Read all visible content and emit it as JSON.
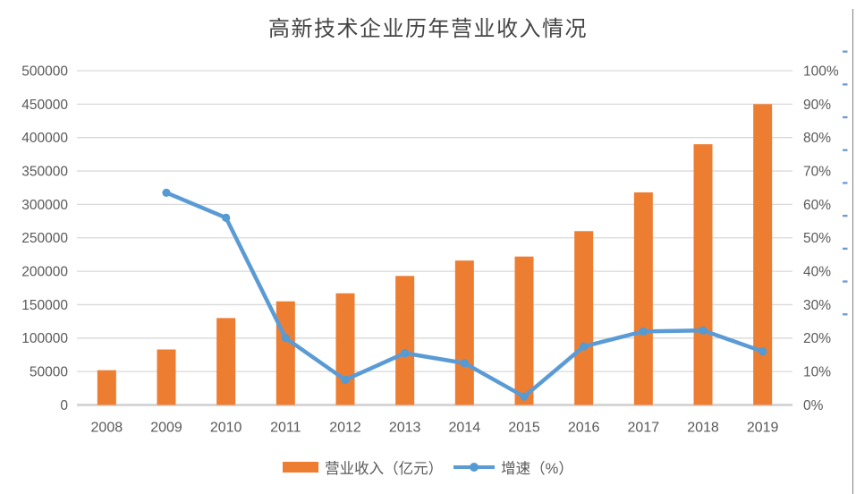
{
  "title": "高新技术企业历年营业收入情况",
  "colors": {
    "background": "#FFFFFF",
    "bar": "#ED7D31",
    "line": "#5B9BD5",
    "marker": "#549AD3",
    "grid": "#D9D9D9",
    "baseline": "#D6D6D6",
    "axis_text": "#595959",
    "title_text": "#454545",
    "edge_border": "#808080",
    "edge_dash": "#6C9BD2"
  },
  "chart_data": {
    "type": "bar+line",
    "title": "高新技术企业历年营业收入情况",
    "categories": [
      "2008",
      "2009",
      "2010",
      "2011",
      "2012",
      "2013",
      "2014",
      "2015",
      "2016",
      "2017",
      "2018",
      "2019"
    ],
    "series": [
      {
        "name": "营业收入（亿元）",
        "type": "bar",
        "axis": "left",
        "color": "#ED7D31",
        "values": [
          52000,
          83000,
          130000,
          155000,
          167000,
          193000,
          216000,
          222000,
          260000,
          318000,
          390000,
          450000
        ]
      },
      {
        "name": "增速（%）",
        "type": "line",
        "axis": "right",
        "color": "#5B9BD5",
        "values": [
          null,
          63.5,
          56,
          20,
          7.5,
          15.5,
          12.5,
          2.5,
          17.5,
          22,
          22.3,
          16
        ]
      }
    ],
    "left_axis": {
      "min": 0,
      "max": 500000,
      "step": 50000,
      "tick_labels": [
        "0",
        "50000",
        "100000",
        "150000",
        "200000",
        "250000",
        "300000",
        "350000",
        "400000",
        "450000",
        "500000"
      ]
    },
    "right_axis": {
      "min": 0,
      "max": 100,
      "step": 10,
      "tick_labels": [
        "0%",
        "10%",
        "20%",
        "30%",
        "40%",
        "50%",
        "60%",
        "70%",
        "80%",
        "90%",
        "100%"
      ]
    },
    "grid": true,
    "legend_position": "bottom"
  },
  "legend": {
    "bar_label": "营业收入（亿元）",
    "line_label": "增速（%）"
  }
}
